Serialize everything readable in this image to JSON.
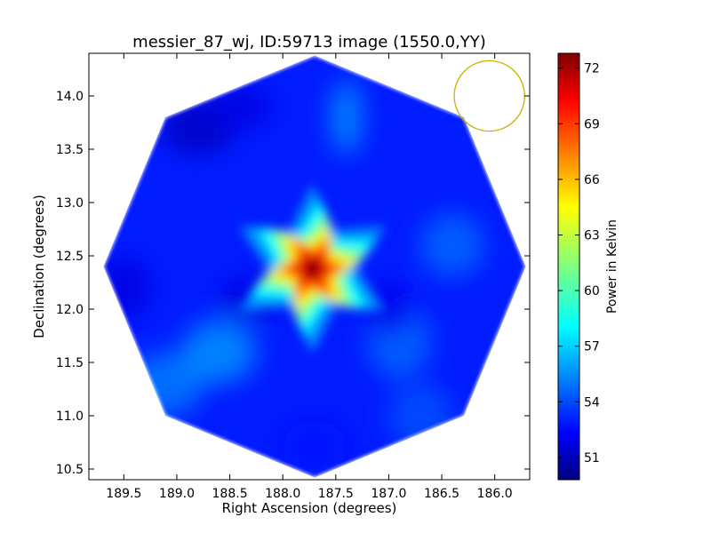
{
  "chart_data": {
    "type": "heatmap",
    "title": "messier_87_wj, ID:59713 image (1550.0,YY)",
    "xlabel": "Right Ascension (degrees)",
    "ylabel": "Declination (degrees)",
    "xlim": [
      189.83,
      185.67
    ],
    "ylim": [
      10.4,
      14.4
    ],
    "x_ticks": [
      "189.5",
      "189.0",
      "188.5",
      "188.0",
      "187.5",
      "187.0",
      "186.5",
      "186.0"
    ],
    "x_tick_values": [
      189.5,
      189.0,
      188.5,
      188.0,
      187.5,
      187.0,
      186.5,
      186.0
    ],
    "y_ticks": [
      "10.5",
      "11.0",
      "11.5",
      "12.0",
      "12.5",
      "13.0",
      "13.5",
      "14.0"
    ],
    "y_tick_values": [
      10.5,
      11.0,
      11.5,
      12.0,
      12.5,
      13.0,
      13.5,
      14.0
    ],
    "colorbar": {
      "label": "Power in Kelvin",
      "range": [
        49.8,
        72.8
      ],
      "ticks": [
        "51",
        "54",
        "57",
        "60",
        "63",
        "66",
        "69",
        "72"
      ],
      "tick_values": [
        51,
        54,
        57,
        60,
        63,
        66,
        69,
        72
      ],
      "colormap": "jet"
    },
    "field_center": [
      187.7,
      12.4
    ],
    "field_shape": "octagon",
    "background_level": 53.3,
    "peak": {
      "ra": 187.72,
      "dec": 12.38,
      "value": 72.0
    },
    "beam_circle": {
      "ra": 186.05,
      "dec": 14.0,
      "radius_deg": 0.33,
      "color": "#c8b400"
    }
  }
}
